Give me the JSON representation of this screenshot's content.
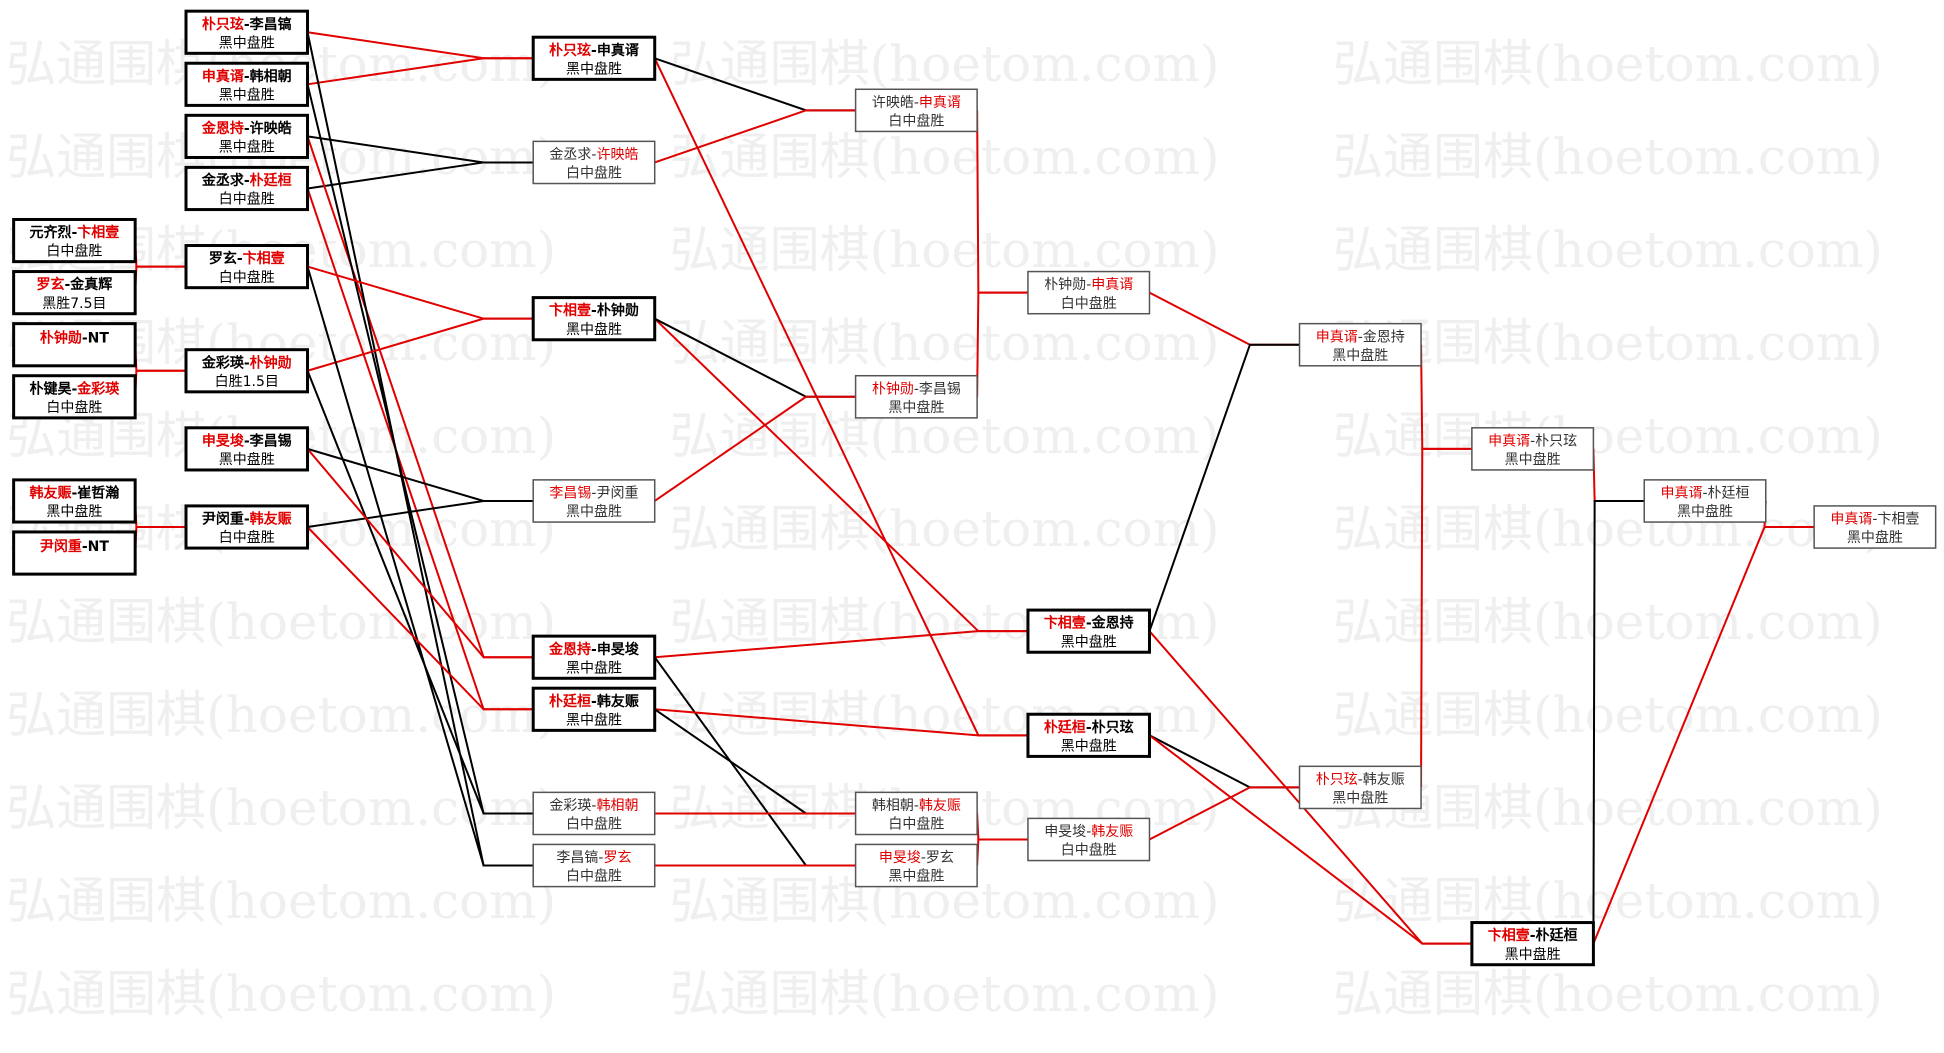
{
  "watermark": "弘通围棋(hoetom.com)",
  "separator": "-",
  "nodes": [
    {
      "players": [
        "元齐烈",
        "卞相壹"
      ],
      "winner": 1,
      "result": "白中盘胜",
      "bold": true
    },
    {
      "players": [
        "罗玄",
        "金真辉"
      ],
      "winner": 0,
      "result": "黑胜7.5目",
      "bold": true
    },
    {
      "players": [
        "朴钟勋",
        "NT"
      ],
      "winner": 0,
      "bold": true
    },
    {
      "players": [
        "朴键昊",
        "金彩瑛"
      ],
      "winner": 1,
      "result": "白中盘胜",
      "bold": true
    },
    {
      "players": [
        "韩友赈",
        "崔哲瀚"
      ],
      "winner": 0,
      "result": "黑中盘胜",
      "bold": true
    },
    {
      "players": [
        "尹闵重",
        "NT"
      ],
      "winner": 0,
      "bold": true
    },
    {
      "players": [
        "朴只玹",
        "李昌镐"
      ],
      "winner": 0,
      "result": "黑中盘胜",
      "bold": true
    },
    {
      "players": [
        "申真谞",
        "韩相朝"
      ],
      "winner": 0,
      "result": "黑中盘胜",
      "bold": true
    },
    {
      "players": [
        "金恩持",
        "许映皓"
      ],
      "winner": 0,
      "result": "黑中盘胜",
      "bold": true
    },
    {
      "players": [
        "金丞求",
        "朴廷桓"
      ],
      "winner": 1,
      "result": "白中盘胜",
      "bold": true
    },
    {
      "players": [
        "罗玄",
        "卞相壹"
      ],
      "winner": 1,
      "result": "白中盘胜",
      "bold": true
    },
    {
      "players": [
        "金彩瑛",
        "朴钟勋"
      ],
      "winner": 1,
      "result": "白胜1.5目",
      "bold": true
    },
    {
      "players": [
        "申旻埈",
        "李昌锡"
      ],
      "winner": 0,
      "result": "黑中盘胜",
      "bold": true
    },
    {
      "players": [
        "尹闵重",
        "韩友赈"
      ],
      "winner": 1,
      "result": "白中盘胜",
      "bold": true
    },
    {
      "players": [
        "朴只玹",
        "申真谞"
      ],
      "winner": 0,
      "result": "黑中盘胜",
      "bold": true
    },
    {
      "players": [
        "金丞求",
        "许映皓"
      ],
      "winner": 1,
      "result": "白中盘胜",
      "bold": false
    },
    {
      "players": [
        "卞相壹",
        "朴钟勋"
      ],
      "winner": 0,
      "result": "黑中盘胜",
      "bold": true
    },
    {
      "players": [
        "李昌锡",
        "尹闵重"
      ],
      "winner": 0,
      "result": "黑中盘胜",
      "bold": false
    },
    {
      "players": [
        "金恩持",
        "申旻埈"
      ],
      "winner": 0,
      "result": "黑中盘胜",
      "bold": true
    },
    {
      "players": [
        "朴廷桓",
        "韩友赈"
      ],
      "winner": 0,
      "result": "黑中盘胜",
      "bold": true
    },
    {
      "players": [
        "金彩瑛",
        "韩相朝"
      ],
      "winner": 1,
      "result": "白中盘胜",
      "bold": false
    },
    {
      "players": [
        "李昌镐",
        "罗玄"
      ],
      "winner": 1,
      "result": "白中盘胜",
      "bold": false
    },
    {
      "players": [
        "许映皓",
        "申真谞"
      ],
      "winner": 1,
      "result": "白中盘胜",
      "bold": false
    },
    {
      "players": [
        "朴钟勋",
        "李昌锡"
      ],
      "winner": 0,
      "result": "黑中盘胜",
      "bold": false
    },
    {
      "players": [
        "韩相朝",
        "韩友赈"
      ],
      "winner": 1,
      "result": "白中盘胜",
      "bold": false
    },
    {
      "players": [
        "申旻埈",
        "罗玄"
      ],
      "winner": 0,
      "result": "黑中盘胜",
      "bold": false
    },
    {
      "players": [
        "朴钟勋",
        "申真谞"
      ],
      "winner": 1,
      "result": "白中盘胜",
      "bold": false
    },
    {
      "players": [
        "卞相壹",
        "金恩持"
      ],
      "winner": 0,
      "result": "黑中盘胜",
      "bold": true
    },
    {
      "players": [
        "朴廷桓",
        "朴只玹"
      ],
      "winner": 0,
      "result": "黑中盘胜",
      "bold": true
    },
    {
      "players": [
        "申旻埈",
        "韩友赈"
      ],
      "winner": 1,
      "result": "白中盘胜",
      "bold": false
    },
    {
      "players": [
        "申真谞",
        "金恩持"
      ],
      "winner": 0,
      "result": "黑中盘胜",
      "bold": false
    },
    {
      "players": [
        "朴只玹",
        "韩友赈"
      ],
      "winner": 0,
      "result": "黑中盘胜",
      "bold": false
    },
    {
      "players": [
        "申真谞",
        "朴只玹"
      ],
      "winner": 0,
      "result": "黑中盘胜",
      "bold": false
    },
    {
      "players": [
        "卞相壹",
        "朴廷桓"
      ],
      "winner": 0,
      "result": "黑中盘胜",
      "bold": true
    },
    {
      "players": [
        "申真谞",
        "朴廷桓"
      ],
      "winner": 0,
      "result": "黑中盘胜",
      "bold": false
    },
    {
      "players": [
        "申真谞",
        "卞相壹"
      ],
      "winner": 0,
      "result": "黑中盘胜",
      "bold": false
    }
  ],
  "columns": [
    [
      0,
      1,
      2,
      3,
      4,
      5
    ],
    [
      6,
      7,
      8,
      9,
      10,
      11,
      12,
      13
    ],
    [
      14,
      15,
      16,
      17,
      18,
      19,
      20,
      21
    ],
    [
      22,
      23,
      24,
      25
    ],
    [
      26,
      27,
      28,
      29
    ],
    [
      30,
      31
    ],
    [
      32,
      33
    ],
    [
      34
    ],
    [
      35
    ]
  ],
  "edges": [
    [
      0,
      10,
      "#e00000"
    ],
    [
      1,
      10,
      "#e00000"
    ],
    [
      2,
      11,
      "#e00000"
    ],
    [
      3,
      11,
      "#e00000"
    ],
    [
      4,
      13,
      "#e00000"
    ],
    [
      5,
      13,
      "#e00000"
    ],
    [
      6,
      14,
      "#e00000"
    ],
    [
      7,
      14,
      "#e00000"
    ],
    [
      8,
      15,
      "#000000"
    ],
    [
      9,
      15,
      "#000000"
    ],
    [
      8,
      18,
      "#e00000"
    ],
    [
      9,
      19,
      "#e00000"
    ],
    [
      6,
      21,
      "#000000"
    ],
    [
      7,
      20,
      "#000000"
    ],
    [
      10,
      16,
      "#e00000"
    ],
    [
      11,
      16,
      "#e00000"
    ],
    [
      12,
      17,
      "#000000"
    ],
    [
      13,
      17,
      "#000000"
    ],
    [
      10,
      21,
      "#000000"
    ],
    [
      11,
      20,
      "#000000"
    ],
    [
      12,
      18,
      "#e00000"
    ],
    [
      13,
      19,
      "#e00000"
    ],
    [
      14,
      22,
      "#000000"
    ],
    [
      15,
      22,
      "#e00000"
    ],
    [
      14,
      28,
      "#e00000"
    ],
    [
      16,
      27,
      "#e00000"
    ],
    [
      16,
      23,
      "#000000"
    ],
    [
      17,
      23,
      "#e00000"
    ],
    [
      18,
      27,
      "#e00000"
    ],
    [
      18,
      25,
      "#000000"
    ],
    [
      19,
      28,
      "#e00000"
    ],
    [
      19,
      24,
      "#000000"
    ],
    [
      20,
      24,
      "#e00000"
    ],
    [
      21,
      25,
      "#e00000"
    ],
    [
      22,
      26,
      "#e00000"
    ],
    [
      23,
      26,
      "#e00000"
    ],
    [
      24,
      29,
      "#e00000"
    ],
    [
      25,
      29,
      "#e00000"
    ],
    [
      26,
      30,
      "#e00000"
    ],
    [
      27,
      30,
      "#000000"
    ],
    [
      27,
      33,
      "#e00000"
    ],
    [
      28,
      31,
      "#000000"
    ],
    [
      28,
      33,
      "#e00000"
    ],
    [
      29,
      31,
      "#e00000"
    ],
    [
      30,
      32,
      "#e00000"
    ],
    [
      31,
      32,
      "#e00000"
    ],
    [
      32,
      34,
      "#e00000"
    ],
    [
      33,
      34,
      "#000000"
    ],
    [
      33,
      35,
      "#e00000"
    ],
    [
      34,
      35,
      "#e00000"
    ]
  ]
}
